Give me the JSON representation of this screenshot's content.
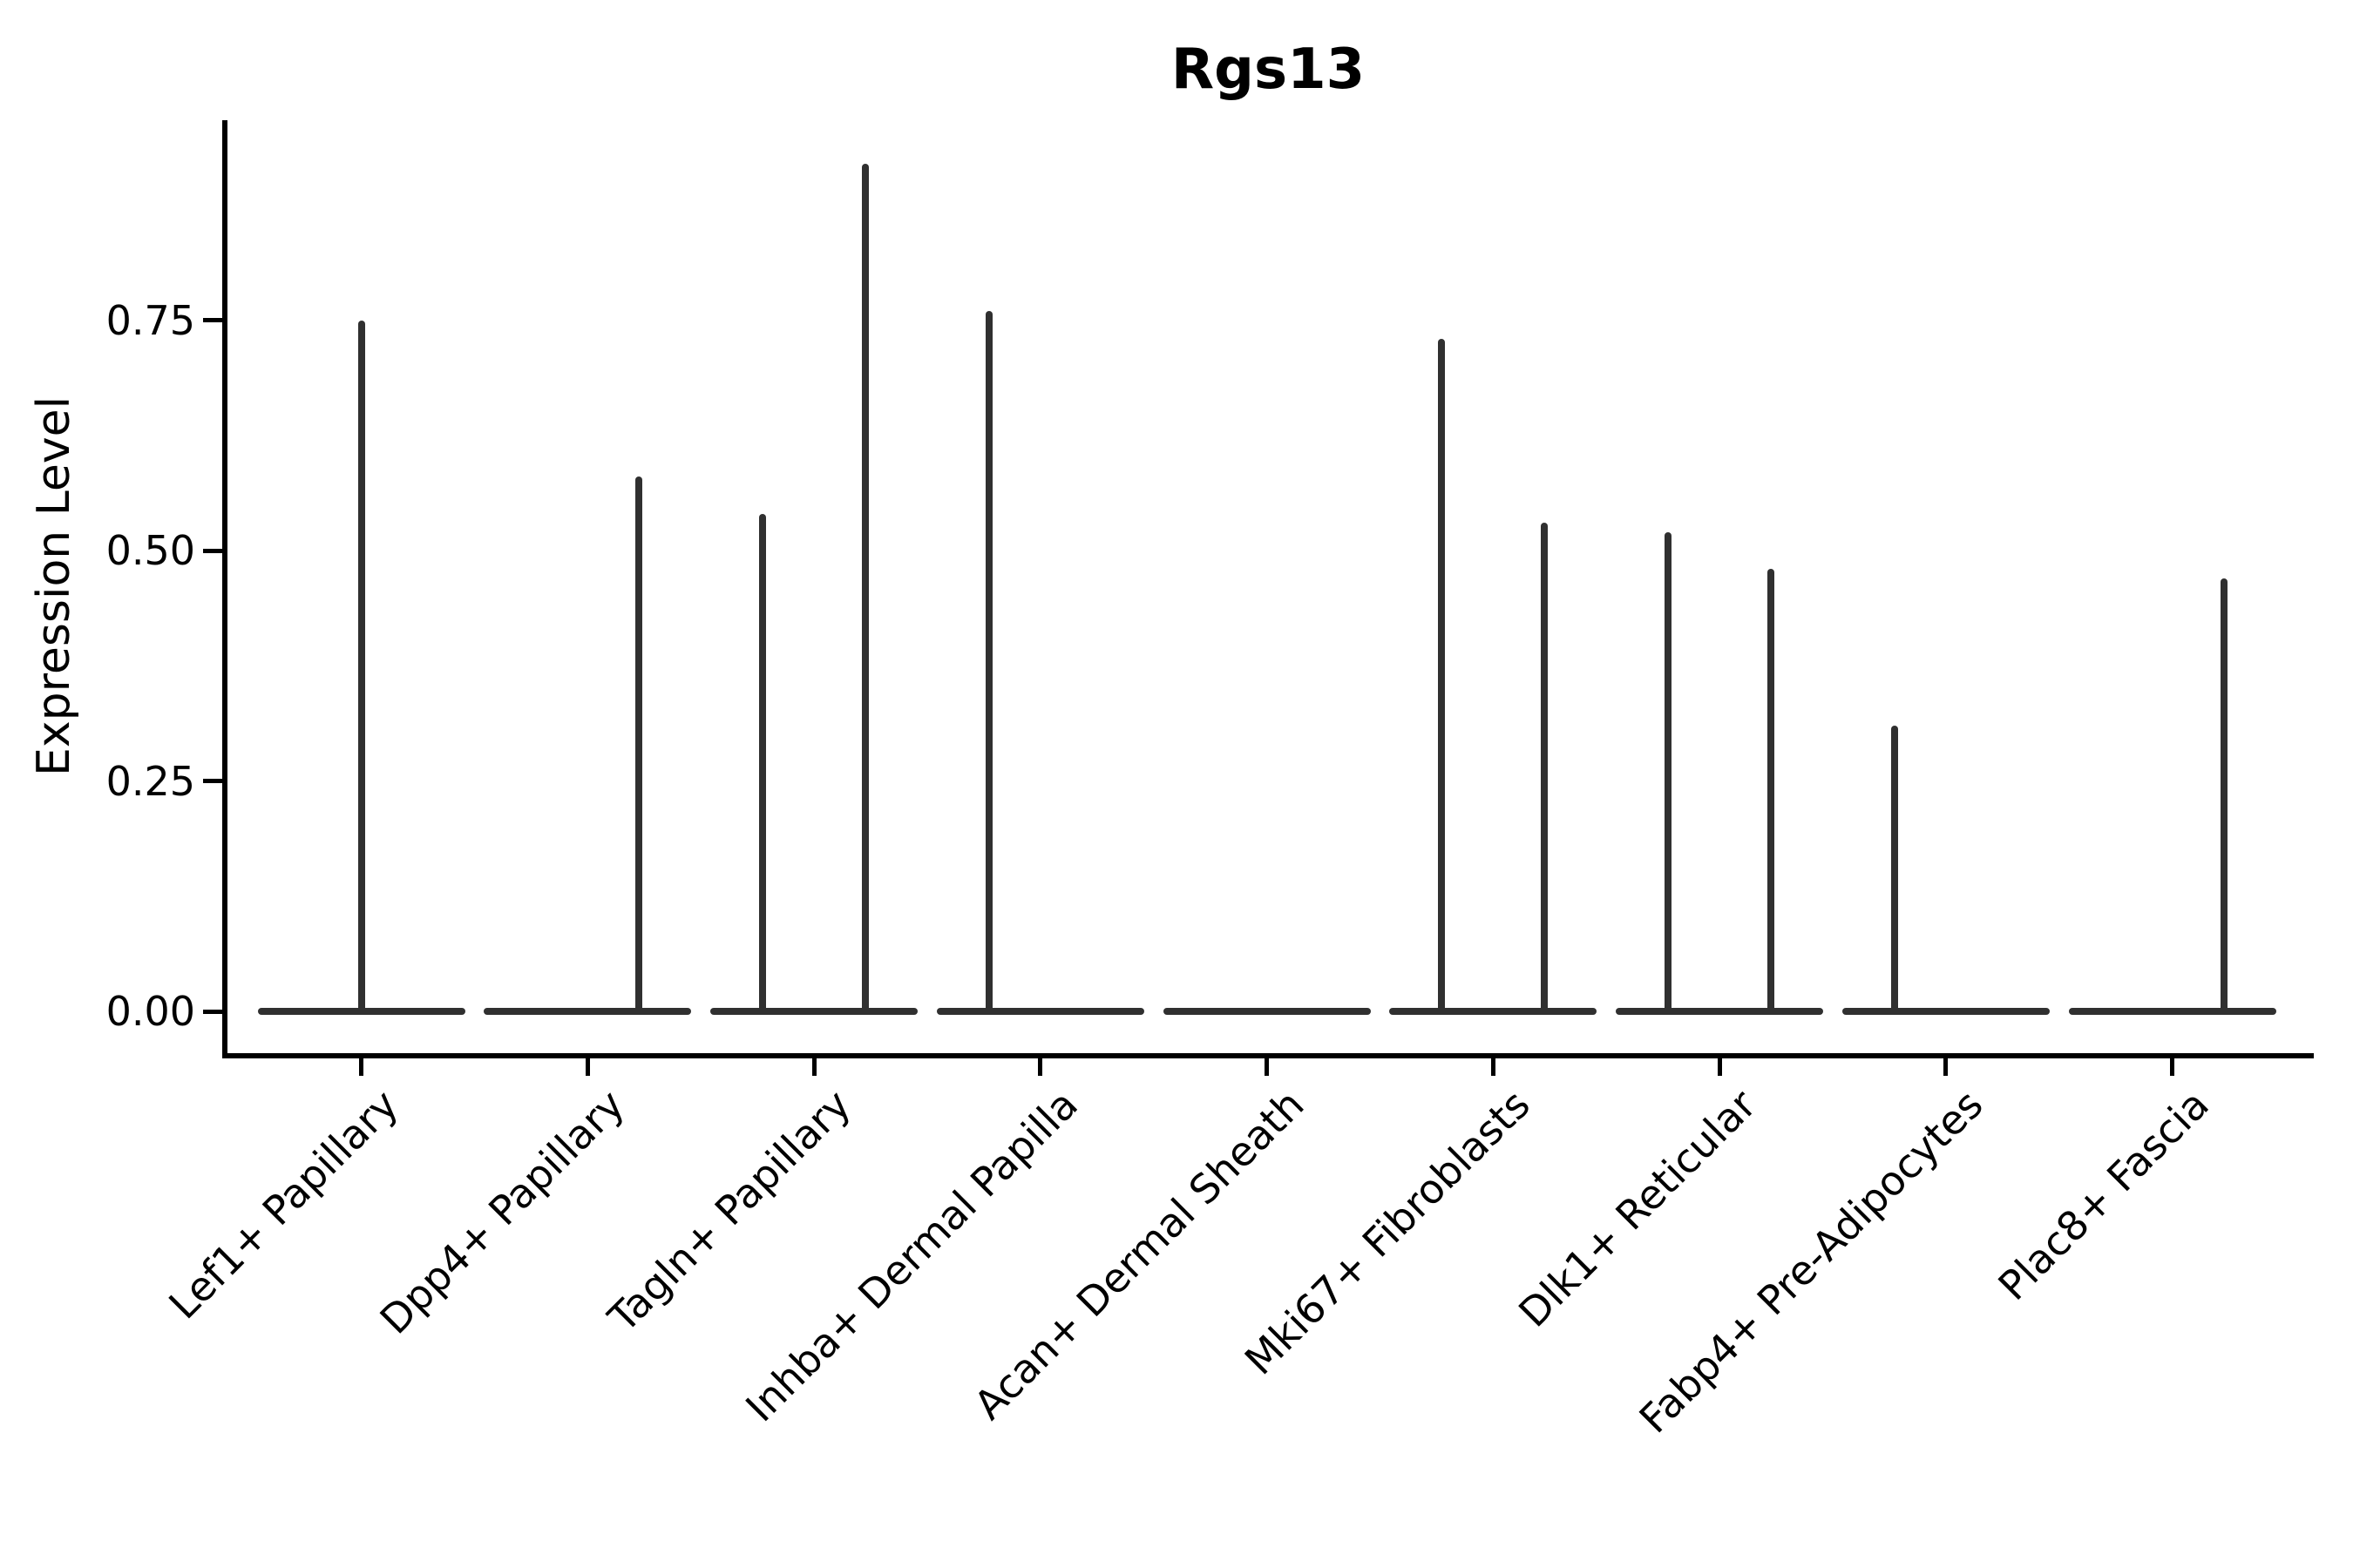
{
  "figure": {
    "title": "Rgs13",
    "y_axis_label": "Expression Level"
  },
  "chart_data": {
    "type": "violin",
    "title": "Rgs13",
    "xlabel": "",
    "ylabel": "Expression Level",
    "ylim": [
      -0.05,
      1.06
    ],
    "y_ticks": [
      0.0,
      0.25,
      0.5,
      0.75
    ],
    "y_tick_labels": [
      "0.00",
      "0.25",
      "0.50",
      "0.75"
    ],
    "grid": false,
    "legend": "none",
    "violin_color": "#303030",
    "description": "Single-gene violin plot; expression is near zero in all groups so each violin collapses to a flat base at 0 with thin density spikes reaching the listed maximum expression values.",
    "categories": [
      "Lef1+ Papillary",
      "Dpp4+ Papillary",
      "Tagln+ Papillary",
      "Inhba+ Dermal Papilla",
      "Acan+ Dermal Sheath",
      "Mki67+ Fibroblasts",
      "Dlk1+ Reticular",
      "Fabp4+ Pre-Adipocytes",
      "Plac8+ Fascia"
    ],
    "violins": [
      {
        "category": "Lef1+ Papillary",
        "spikes": [
          {
            "pos": "center",
            "max_expression": 0.75
          }
        ]
      },
      {
        "category": "Dpp4+ Papillary",
        "spikes": [
          {
            "pos": "right",
            "max_expression": 0.58
          }
        ]
      },
      {
        "category": "Tagln+ Papillary",
        "spikes": [
          {
            "pos": "left",
            "max_expression": 0.54
          },
          {
            "pos": "right",
            "max_expression": 0.92
          }
        ]
      },
      {
        "category": "Inhba+ Dermal Papilla",
        "spikes": [
          {
            "pos": "left",
            "max_expression": 0.76
          }
        ]
      },
      {
        "category": "Acan+ Dermal Sheath",
        "spikes": []
      },
      {
        "category": "Mki67+ Fibroblasts",
        "spikes": [
          {
            "pos": "left",
            "max_expression": 0.73
          },
          {
            "pos": "right",
            "max_expression": 0.53
          }
        ]
      },
      {
        "category": "Dlk1+ Reticular",
        "spikes": [
          {
            "pos": "left",
            "max_expression": 0.52
          },
          {
            "pos": "right",
            "max_expression": 0.48
          }
        ]
      },
      {
        "category": "Fabp4+ Pre-Adipocytes",
        "spikes": [
          {
            "pos": "left",
            "max_expression": 0.31
          }
        ]
      },
      {
        "category": "Plac8+ Fascia",
        "spikes": [
          {
            "pos": "right",
            "max_expression": 0.47
          }
        ]
      }
    ]
  }
}
